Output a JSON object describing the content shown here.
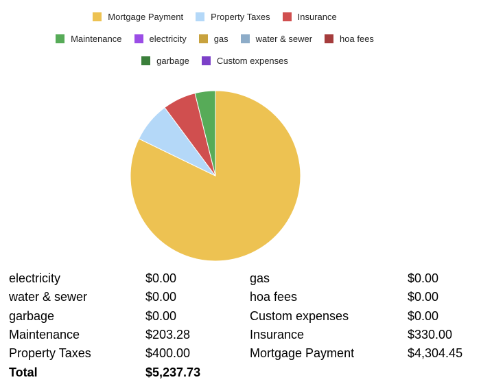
{
  "chart_data": {
    "type": "pie",
    "categories": [
      "Mortgage Payment",
      "Property Taxes",
      "Insurance",
      "Maintenance",
      "electricity",
      "gas",
      "water & sewer",
      "hoa fees",
      "garbage",
      "Custom expenses"
    ],
    "values": [
      4304.45,
      400,
      330,
      203.28,
      0,
      0,
      0,
      0,
      0,
      0
    ],
    "colors": [
      "#edc252",
      "#b4d8f8",
      "#d04f4f",
      "#57ab58",
      "#9b4de6",
      "#c8a23e",
      "#8dacc8",
      "#a53c3c",
      "#3b7f3b",
      "#7c40c8"
    ]
  },
  "table": {
    "rows": [
      [
        "electricity",
        "$0.00",
        "gas",
        "$0.00"
      ],
      [
        "water & sewer",
        "$0.00",
        "hoa fees",
        "$0.00"
      ],
      [
        "garbage",
        "$0.00",
        "Custom expenses",
        "$0.00"
      ],
      [
        "Maintenance",
        "$203.28",
        "Insurance",
        "$330.00"
      ],
      [
        "Property Taxes",
        "$400.00",
        "Mortgage Payment",
        "$4,304.45"
      ]
    ],
    "total": {
      "label": "Total",
      "value": "$5,237.73"
    }
  }
}
